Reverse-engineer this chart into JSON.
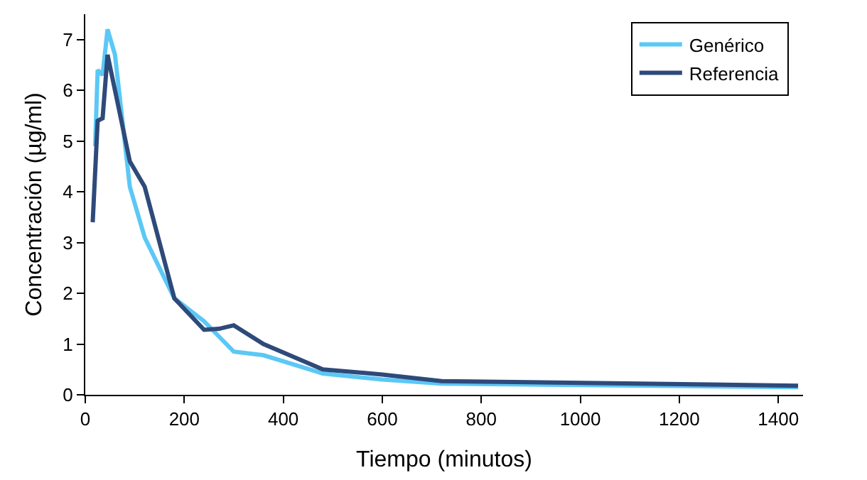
{
  "chart_data": {
    "type": "line",
    "xlabel": "Tiempo (minutos)",
    "ylabel": "Concentración (µg/ml)",
    "xlim": [
      0,
      1450
    ],
    "xticks": [
      0,
      200,
      400,
      600,
      800,
      1000,
      1200,
      1400
    ],
    "ylim": [
      0,
      7.5
    ],
    "yticks": [
      0,
      1,
      2,
      3,
      4,
      5,
      6,
      7
    ],
    "grid": false,
    "legend": "top right",
    "marker": "none",
    "line_style": "solid",
    "series": [
      {
        "name": "Genérico",
        "color": "#5bc8f5",
        "x": [
          20,
          25,
          35,
          45,
          60,
          90,
          120,
          180,
          240,
          300,
          360,
          480,
          600,
          720,
          1440
        ],
        "values": [
          4.9,
          6.4,
          6.3,
          7.2,
          6.7,
          4.1,
          3.1,
          1.9,
          1.45,
          0.85,
          0.78,
          0.42,
          0.3,
          0.22,
          0.15
        ]
      },
      {
        "name": "Referencia",
        "color": "#2e4a7a",
        "x": [
          15,
          25,
          35,
          45,
          60,
          90,
          120,
          180,
          240,
          270,
          300,
          360,
          480,
          600,
          720,
          1440
        ],
        "values": [
          3.4,
          5.4,
          5.45,
          6.7,
          6.0,
          4.6,
          4.1,
          1.9,
          1.28,
          1.3,
          1.37,
          1.0,
          0.5,
          0.4,
          0.27,
          0.18
        ]
      }
    ]
  }
}
